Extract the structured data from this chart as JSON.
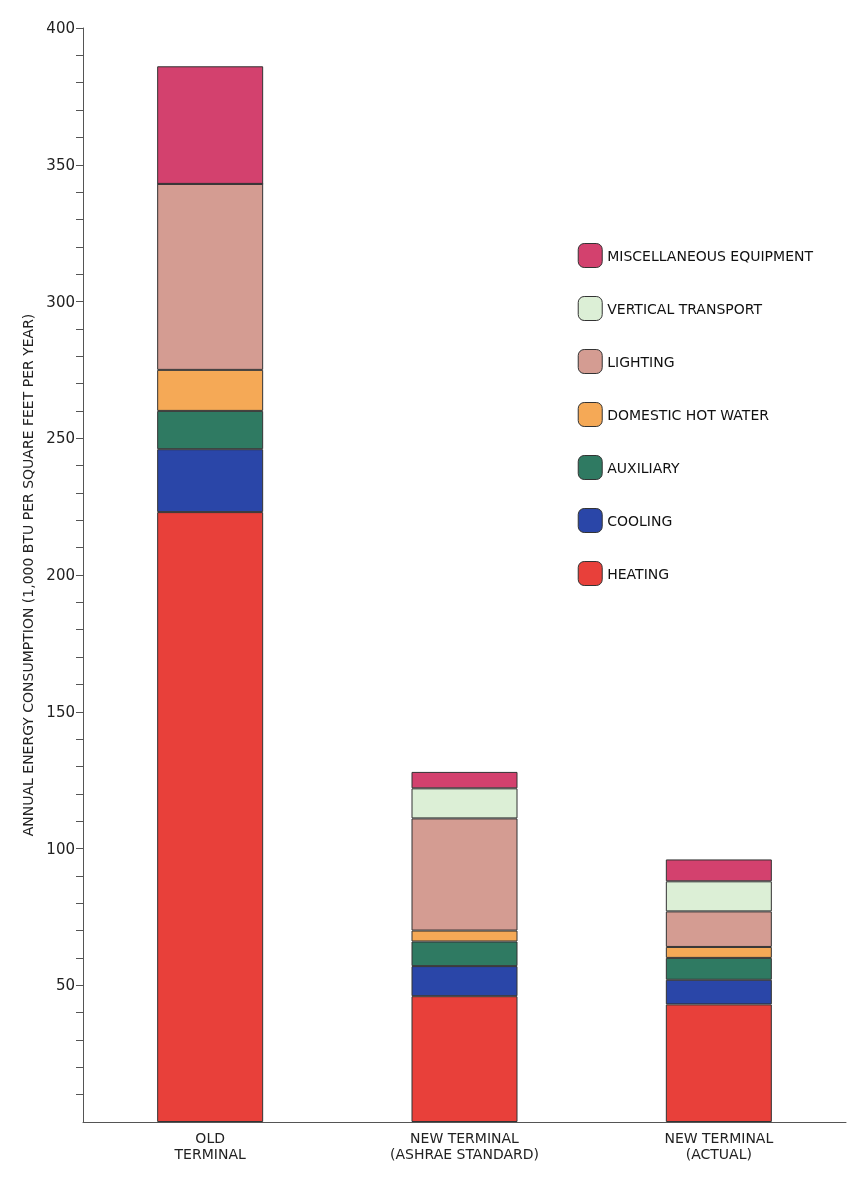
{
  "chart_data": {
    "type": "bar",
    "stacked": true,
    "ylabel": "ANNUAL ENERGY CONSUMPTION (1,000 BTU PER SQUARE FEET PER YEAR)",
    "categories": [
      "OLD\nTERMINAL",
      "NEW TERMINAL\n(ASHRAE STANDARD)",
      "NEW TERMINAL\n(ACTUAL)"
    ],
    "series": [
      {
        "name": "HEATING",
        "color": "#e8403a",
        "values": [
          223,
          46,
          43
        ]
      },
      {
        "name": "COOLING",
        "color": "#2a46a8",
        "values": [
          23,
          11,
          9
        ]
      },
      {
        "name": "AUXILIARY",
        "color": "#2f7a62",
        "values": [
          14,
          9,
          8
        ]
      },
      {
        "name": "DOMESTIC HOT WATER",
        "color": "#f5a956",
        "values": [
          15,
          4,
          4
        ]
      },
      {
        "name": "LIGHTING",
        "color": "#d49c92",
        "values": [
          68,
          41,
          13
        ]
      },
      {
        "name": "VERTICAL TRANSPORT",
        "color": "#dcefd6",
        "values": [
          0,
          11,
          11
        ]
      },
      {
        "name": "MISCELLANEOUS EQUIPMENT",
        "color": "#d3416e",
        "values": [
          43,
          6,
          8
        ]
      }
    ],
    "ylim": [
      0,
      400
    ],
    "yticks": [
      {
        "value": 10,
        "label": null
      },
      {
        "value": 20,
        "label": null
      },
      {
        "value": 30,
        "label": null
      },
      {
        "value": 40,
        "label": null
      },
      50,
      {
        "value": 60,
        "label": null
      },
      {
        "value": 70,
        "label": null
      },
      {
        "value": 80,
        "label": null
      },
      {
        "value": 90,
        "label": null
      },
      100,
      {
        "value": 110,
        "label": null
      },
      {
        "value": 120,
        "label": null
      },
      {
        "value": 130,
        "label": null
      },
      {
        "value": 140,
        "label": null
      },
      150,
      {
        "value": 160,
        "label": null
      },
      {
        "value": 170,
        "label": null
      },
      {
        "value": 180,
        "label": null
      },
      {
        "value": 190,
        "label": null
      },
      200,
      {
        "value": 210,
        "label": null
      },
      {
        "value": 220,
        "label": null
      },
      {
        "value": 230,
        "label": null
      },
      {
        "value": 240,
        "label": null
      },
      250,
      {
        "value": 260,
        "label": null
      },
      {
        "value": 270,
        "label": null
      },
      {
        "value": 280,
        "label": null
      },
      {
        "value": 290,
        "label": null
      },
      300,
      {
        "value": 310,
        "label": null
      },
      {
        "value": 320,
        "label": null
      },
      {
        "value": 330,
        "label": null
      },
      {
        "value": 340,
        "label": null
      },
      350,
      {
        "value": 360,
        "label": null
      },
      {
        "value": 370,
        "label": null
      },
      {
        "value": 380,
        "label": null
      },
      {
        "value": 390,
        "label": null
      },
      400
    ],
    "grid": false,
    "legend": "top right"
  }
}
